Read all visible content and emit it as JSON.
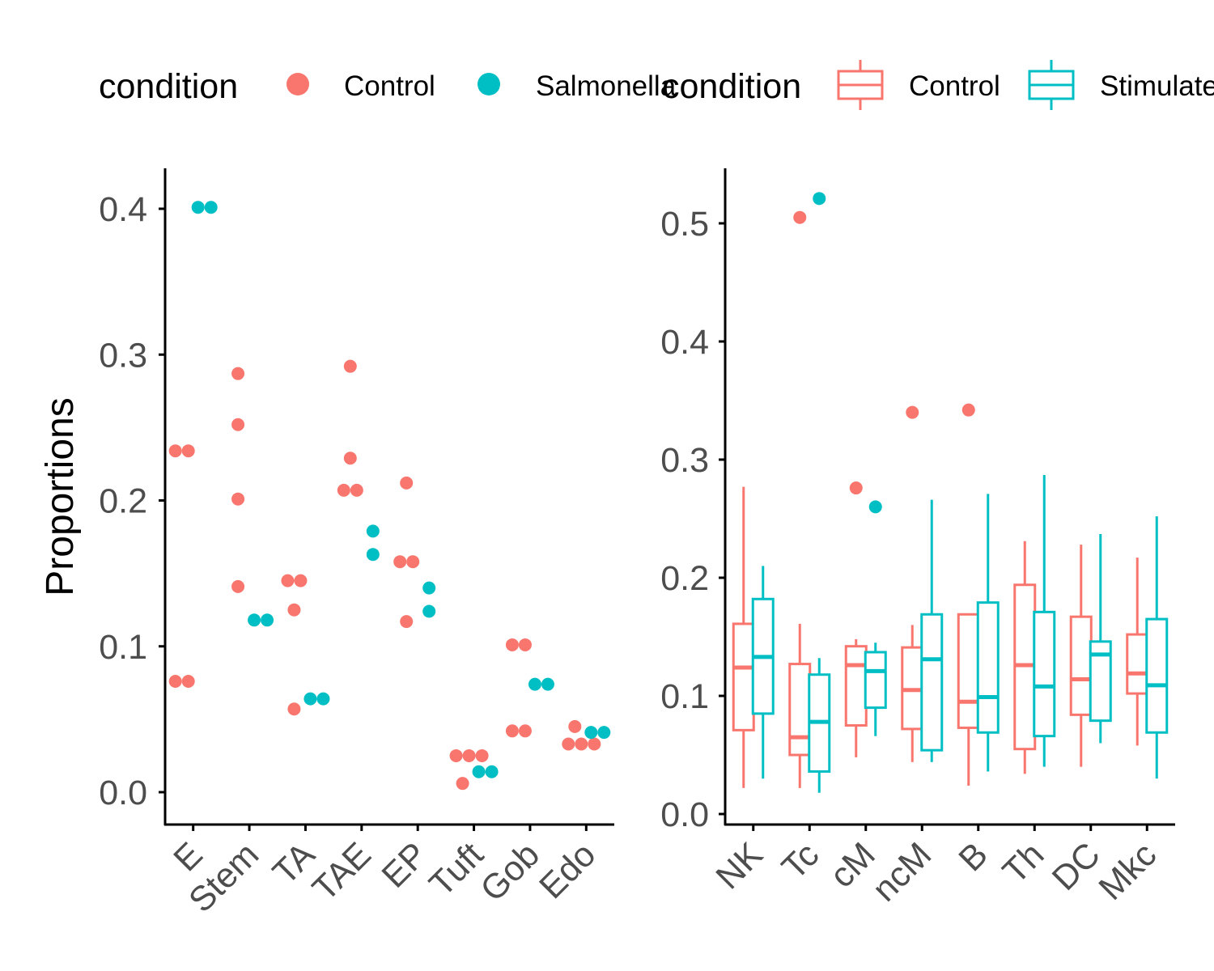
{
  "colors": {
    "Control": "#F8766D",
    "Salmonella": "#00BFC4",
    "Stimulated": "#00BFC4",
    "axis": "#000000",
    "tick_text": "#4d4d4d"
  },
  "legends": [
    {
      "title": "condition",
      "entries": [
        {
          "label": "Control",
          "key": "point",
          "color": "#F8766D"
        },
        {
          "label": "Salmonella",
          "key": "point",
          "color": "#00BFC4"
        }
      ]
    },
    {
      "title": "condition",
      "entries": [
        {
          "label": "Control",
          "key": "box",
          "color": "#F8766D"
        },
        {
          "label": "Stimulated",
          "key": "box",
          "color": "#00BFC4"
        }
      ]
    }
  ],
  "chart_data": [
    {
      "type": "scatter",
      "ylabel": "Proportions",
      "xlabel": "",
      "categories": [
        "E",
        "Stem",
        "TA",
        "TAE",
        "EP",
        "Tuft",
        "Gob",
        "Edo"
      ],
      "ylim": [
        -0.02,
        0.43
      ],
      "yticks": [
        0.0,
        0.1,
        0.2,
        0.3,
        0.4
      ],
      "ytick_labels": [
        "0.0",
        "0.1",
        "0.2",
        "0.3",
        "0.4"
      ],
      "grid": false,
      "legend_position": "top",
      "series": [
        {
          "name": "Control",
          "points": [
            {
              "cat": "E",
              "y": 0.234
            },
            {
              "cat": "E",
              "y": 0.234
            },
            {
              "cat": "E",
              "y": 0.076
            },
            {
              "cat": "E",
              "y": 0.076
            },
            {
              "cat": "Stem",
              "y": 0.287
            },
            {
              "cat": "Stem",
              "y": 0.252
            },
            {
              "cat": "Stem",
              "y": 0.201
            },
            {
              "cat": "Stem",
              "y": 0.141
            },
            {
              "cat": "TA",
              "y": 0.145
            },
            {
              "cat": "TA",
              "y": 0.145
            },
            {
              "cat": "TA",
              "y": 0.125
            },
            {
              "cat": "TA",
              "y": 0.057
            },
            {
              "cat": "TAE",
              "y": 0.292
            },
            {
              "cat": "TAE",
              "y": 0.229
            },
            {
              "cat": "TAE",
              "y": 0.207
            },
            {
              "cat": "TAE",
              "y": 0.207
            },
            {
              "cat": "EP",
              "y": 0.212
            },
            {
              "cat": "EP",
              "y": 0.158
            },
            {
              "cat": "EP",
              "y": 0.158
            },
            {
              "cat": "EP",
              "y": 0.117
            },
            {
              "cat": "Tuft",
              "y": 0.025
            },
            {
              "cat": "Tuft",
              "y": 0.025
            },
            {
              "cat": "Tuft",
              "y": 0.025
            },
            {
              "cat": "Tuft",
              "y": 0.006
            },
            {
              "cat": "Gob",
              "y": 0.101
            },
            {
              "cat": "Gob",
              "y": 0.101
            },
            {
              "cat": "Gob",
              "y": 0.042
            },
            {
              "cat": "Gob",
              "y": 0.042
            },
            {
              "cat": "Edo",
              "y": 0.045
            },
            {
              "cat": "Edo",
              "y": 0.033
            },
            {
              "cat": "Edo",
              "y": 0.033
            },
            {
              "cat": "Edo",
              "y": 0.033
            }
          ]
        },
        {
          "name": "Salmonella",
          "points": [
            {
              "cat": "E",
              "y": 0.401
            },
            {
              "cat": "E",
              "y": 0.401
            },
            {
              "cat": "Stem",
              "y": 0.118
            },
            {
              "cat": "Stem",
              "y": 0.118
            },
            {
              "cat": "TA",
              "y": 0.064
            },
            {
              "cat": "TA",
              "y": 0.064
            },
            {
              "cat": "TAE",
              "y": 0.179
            },
            {
              "cat": "TAE",
              "y": 0.163
            },
            {
              "cat": "EP",
              "y": 0.14
            },
            {
              "cat": "EP",
              "y": 0.124
            },
            {
              "cat": "Tuft",
              "y": 0.014
            },
            {
              "cat": "Tuft",
              "y": 0.014
            },
            {
              "cat": "Gob",
              "y": 0.074
            },
            {
              "cat": "Gob",
              "y": 0.074
            },
            {
              "cat": "Edo",
              "y": 0.041
            },
            {
              "cat": "Edo",
              "y": 0.041
            }
          ]
        }
      ]
    },
    {
      "type": "box",
      "ylabel": "",
      "xlabel": "",
      "categories": [
        "NK",
        "Tc",
        "cM",
        "ncM",
        "B",
        "Th",
        "DC",
        "Mkc"
      ],
      "ylim": [
        -0.01,
        0.55
      ],
      "yticks": [
        0.0,
        0.1,
        0.2,
        0.3,
        0.4,
        0.5
      ],
      "ytick_labels": [
        "0.0",
        "0.1",
        "0.2",
        "0.3",
        "0.4",
        "0.5"
      ],
      "grid": false,
      "legend_position": "top",
      "series": [
        {
          "name": "Control",
          "boxes": [
            {
              "cat": "NK",
              "whisker_low": 0.022,
              "q1": 0.071,
              "median": 0.124,
              "q3": 0.161,
              "whisker_high": 0.277,
              "outliers": []
            },
            {
              "cat": "Tc",
              "whisker_low": 0.022,
              "q1": 0.05,
              "median": 0.065,
              "q3": 0.127,
              "whisker_high": 0.161,
              "outliers": [
                0.505
              ]
            },
            {
              "cat": "cM",
              "whisker_low": 0.048,
              "q1": 0.075,
              "median": 0.126,
              "q3": 0.142,
              "whisker_high": 0.148,
              "outliers": [
                0.276
              ]
            },
            {
              "cat": "ncM",
              "whisker_low": 0.044,
              "q1": 0.072,
              "median": 0.105,
              "q3": 0.141,
              "whisker_high": 0.16,
              "outliers": [
                0.34
              ]
            },
            {
              "cat": "B",
              "whisker_low": 0.024,
              "q1": 0.073,
              "median": 0.095,
              "q3": 0.169,
              "whisker_high": 0.169,
              "outliers": [
                0.342
              ]
            },
            {
              "cat": "Th",
              "whisker_low": 0.034,
              "q1": 0.055,
              "median": 0.126,
              "q3": 0.194,
              "whisker_high": 0.231,
              "outliers": []
            },
            {
              "cat": "DC",
              "whisker_low": 0.04,
              "q1": 0.084,
              "median": 0.114,
              "q3": 0.167,
              "whisker_high": 0.228,
              "outliers": []
            },
            {
              "cat": "Mkc",
              "whisker_low": 0.058,
              "q1": 0.102,
              "median": 0.119,
              "q3": 0.152,
              "whisker_high": 0.217,
              "outliers": []
            }
          ]
        },
        {
          "name": "Stimulated",
          "boxes": [
            {
              "cat": "NK",
              "whisker_low": 0.03,
              "q1": 0.085,
              "median": 0.133,
              "q3": 0.182,
              "whisker_high": 0.21,
              "outliers": []
            },
            {
              "cat": "Tc",
              "whisker_low": 0.018,
              "q1": 0.036,
              "median": 0.078,
              "q3": 0.118,
              "whisker_high": 0.132,
              "outliers": [
                0.521
              ]
            },
            {
              "cat": "cM",
              "whisker_low": 0.066,
              "q1": 0.09,
              "median": 0.121,
              "q3": 0.137,
              "whisker_high": 0.145,
              "outliers": [
                0.26
              ]
            },
            {
              "cat": "ncM",
              "whisker_low": 0.044,
              "q1": 0.054,
              "median": 0.131,
              "q3": 0.169,
              "whisker_high": 0.266,
              "outliers": []
            },
            {
              "cat": "B",
              "whisker_low": 0.036,
              "q1": 0.069,
              "median": 0.099,
              "q3": 0.179,
              "whisker_high": 0.271,
              "outliers": []
            },
            {
              "cat": "Th",
              "whisker_low": 0.04,
              "q1": 0.066,
              "median": 0.108,
              "q3": 0.171,
              "whisker_high": 0.287,
              "outliers": []
            },
            {
              "cat": "DC",
              "whisker_low": 0.06,
              "q1": 0.079,
              "median": 0.135,
              "q3": 0.146,
              "whisker_high": 0.237,
              "outliers": []
            },
            {
              "cat": "Mkc",
              "whisker_low": 0.03,
              "q1": 0.069,
              "median": 0.109,
              "q3": 0.165,
              "whisker_high": 0.252,
              "outliers": []
            }
          ]
        }
      ]
    }
  ]
}
